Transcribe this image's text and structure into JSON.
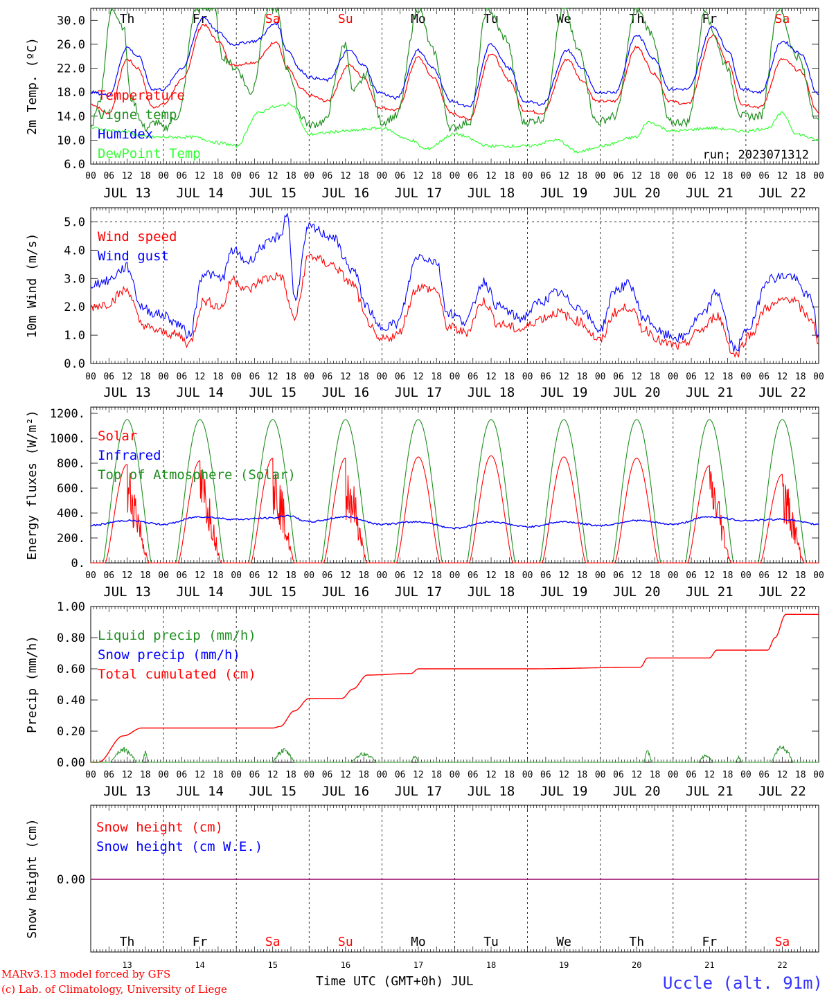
{
  "colors": {
    "temperature": "#ff0000",
    "vigne": "#1f8f1f",
    "humidex": "#0000ff",
    "dewpoint": "#33ff33",
    "wind": "#ff0000",
    "gust": "#0000ff",
    "solar": "#ff0000",
    "infrared": "#0000ff",
    "toa": "#1f8f1f",
    "liquid": "#1f8f1f",
    "snow_precip": "#0000ff",
    "cumulated": "#ff0000",
    "snow_height": "#ff0000",
    "snow_we": "#0000ff",
    "weekend": "#ff0000",
    "station": "#3333ff"
  },
  "days": [
    "JUL 13",
    "JUL 14",
    "JUL 15",
    "JUL 16",
    "JUL 17",
    "JUL 18",
    "JUL 19",
    "JUL 20",
    "JUL 21",
    "JUL 22"
  ],
  "weekdays": [
    {
      "label": "Th",
      "weekend": false
    },
    {
      "label": "Fr",
      "weekend": false
    },
    {
      "label": "Sa",
      "weekend": true
    },
    {
      "label": "Su",
      "weekend": true
    },
    {
      "label": "Mo",
      "weekend": false
    },
    {
      "label": "Tu",
      "weekend": false
    },
    {
      "label": "We",
      "weekend": false
    },
    {
      "label": "Th",
      "weekend": false
    },
    {
      "label": "Fr",
      "weekend": false
    },
    {
      "label": "Sa",
      "weekend": true
    }
  ],
  "day_numbers": [
    "13",
    "14",
    "15",
    "16",
    "17",
    "18",
    "19",
    "20",
    "21",
    "22"
  ],
  "hour_labels": [
    "00",
    "06",
    "12",
    "18"
  ],
  "hour_end": "00",
  "run_label": "run: 2023071312",
  "footer": {
    "credit_line1": "MARv3.13 model forced by GFS",
    "credit_line2": "(c) Lab. of Climatology, University of Liege",
    "time_axis": "Time UTC (GMT+0h) JUL",
    "station": "Uccle (alt. 91m)"
  },
  "chart_data": [
    {
      "id": "temperature",
      "type": "line",
      "ylabel": "2m Temp. (ºC)",
      "ylim": [
        6,
        32
      ],
      "yticks": [
        "6.0",
        "10.0",
        "14.0",
        "18.0",
        "22.0",
        "26.0",
        "30.0"
      ],
      "x_unit": "day offset from JUL 13 00 UTC",
      "legend": [
        "Temperature",
        "Vigne temp",
        "Humidex",
        "DewPoint Temp"
      ],
      "series": [
        {
          "name": "Temperature",
          "key": "temperature",
          "x": [
            0,
            0.25,
            0.5,
            0.65,
            0.85,
            1,
            1.25,
            1.55,
            1.75,
            1.95,
            2.25,
            2.55,
            2.7,
            2.9,
            3,
            3.25,
            3.55,
            3.75,
            3.95,
            4.2,
            4.5,
            4.7,
            4.95,
            5.2,
            5.5,
            5.75,
            5.95,
            6.2,
            6.55,
            6.75,
            6.95,
            7.2,
            7.5,
            7.75,
            7.95,
            8.2,
            8.55,
            8.75,
            8.95,
            9.2,
            9.5,
            9.75,
            10
          ],
          "y": [
            16,
            14.5,
            23.5,
            22,
            15.5,
            16,
            20,
            29.3,
            26.5,
            22.5,
            23,
            26.5,
            22,
            18.5,
            17.5,
            16.5,
            22.5,
            20.5,
            15.5,
            15,
            23.8,
            20.5,
            14.5,
            13.5,
            24.5,
            20,
            15,
            14.5,
            23.5,
            20,
            16.5,
            16.5,
            25.5,
            21,
            16.5,
            16,
            27.5,
            23,
            16,
            15.5,
            23.5,
            21.5,
            14.5
          ]
        },
        {
          "name": "Vigne temp",
          "key": "vigne",
          "x": [
            0,
            0.1,
            0.3,
            0.45,
            0.55,
            0.75,
            0.9,
            1,
            1.2,
            1.45,
            1.7,
            1.8,
            2,
            2.2,
            2.45,
            2.55,
            2.7,
            2.9,
            3,
            3.2,
            3.5,
            3.6,
            3.8,
            4,
            4.2,
            4.5,
            4.7,
            4.95,
            5.2,
            5.45,
            5.7,
            5.95,
            6.2,
            6.5,
            6.7,
            6.95,
            7.2,
            7.5,
            7.7,
            7.95,
            8.2,
            8.45,
            8.55,
            8.7,
            8.95,
            9.2,
            9.45,
            9.7,
            10
          ],
          "y": [
            12,
            16,
            32,
            29,
            17,
            12,
            13,
            12,
            14,
            32,
            32,
            24,
            22,
            18,
            32,
            32,
            22,
            14,
            12.5,
            13,
            26,
            18,
            21,
            13,
            14,
            32,
            25,
            12,
            13,
            32,
            27,
            13,
            13.5,
            32,
            25,
            13,
            14,
            32,
            28,
            13,
            13,
            32,
            28,
            23,
            14,
            14,
            32,
            24,
            13
          ]
        },
        {
          "name": "Humidex",
          "key": "humidex",
          "x": [
            0,
            0.25,
            0.5,
            0.65,
            0.85,
            1,
            1.25,
            1.55,
            1.75,
            1.95,
            2.25,
            2.55,
            2.7,
            2.9,
            3,
            3.25,
            3.55,
            3.75,
            3.95,
            4.2,
            4.5,
            4.7,
            4.95,
            5.2,
            5.5,
            5.75,
            5.95,
            6.2,
            6.55,
            6.75,
            6.95,
            7.2,
            7.5,
            7.75,
            7.95,
            8.2,
            8.55,
            8.75,
            8.95,
            9.2,
            9.5,
            9.75,
            10
          ],
          "y": [
            18,
            17.5,
            25.5,
            24,
            18.5,
            18.5,
            22,
            30.5,
            28,
            26,
            26.5,
            29.5,
            25,
            21.5,
            20.5,
            20,
            25,
            22.5,
            18,
            17,
            25,
            22,
            16.5,
            15.5,
            26,
            22,
            16.5,
            16,
            25,
            22,
            18,
            18,
            27.5,
            23.5,
            18.5,
            18.5,
            29,
            25,
            18.5,
            18,
            26.5,
            24.5,
            17.5
          ]
        },
        {
          "name": "DewPoint Temp",
          "key": "dewpoint",
          "x": [
            0,
            0.4,
            0.8,
            1,
            1.4,
            1.8,
            2,
            2.3,
            2.5,
            2.75,
            3,
            3.5,
            4,
            4.4,
            4.6,
            5,
            5.5,
            6,
            6.4,
            6.7,
            7,
            7.5,
            7.65,
            8,
            8.5,
            9,
            9.3,
            9.5,
            9.7,
            10
          ],
          "y": [
            12,
            11.5,
            10.5,
            10.5,
            10.5,
            9.5,
            9,
            14.5,
            15.5,
            16,
            11,
            11.5,
            12,
            10,
            8.5,
            11,
            9,
            9,
            10,
            8,
            9,
            10.5,
            13,
            11.5,
            12,
            11.5,
            12,
            14.5,
            11,
            10
          ]
        }
      ]
    },
    {
      "id": "wind",
      "type": "line",
      "ylabel": "10m Wind (m/s)",
      "ylim": [
        0,
        5.5
      ],
      "yticks": [
        "0.0",
        "1.0",
        "2.0",
        "3.0",
        "4.0",
        "5.0"
      ],
      "legend": [
        "Wind speed",
        "Wind gust"
      ],
      "series": [
        {
          "name": "Wind speed",
          "key": "wind",
          "x": [
            0,
            0.2,
            0.5,
            0.7,
            0.85,
            1,
            1.2,
            1.35,
            1.55,
            1.8,
            1.95,
            2.15,
            2.4,
            2.6,
            2.8,
            3,
            3.3,
            3.6,
            3.8,
            3.95,
            4.2,
            4.5,
            4.75,
            4.9,
            5.15,
            5.4,
            5.6,
            5.9,
            6.2,
            6.4,
            6.7,
            7,
            7.2,
            7.4,
            7.6,
            7.9,
            8.1,
            8.4,
            8.6,
            8.85,
            9.05,
            9.3,
            9.6,
            9.9,
            10
          ],
          "y": [
            2.0,
            2.1,
            2.6,
            1.4,
            1.2,
            1.1,
            1.0,
            0.7,
            2.2,
            2.0,
            3.0,
            2.6,
            3.0,
            3.1,
            1.6,
            3.8,
            3.5,
            2.8,
            1.5,
            0.8,
            1.0,
            2.7,
            2.6,
            1.3,
            1.1,
            2.2,
            1.4,
            1.2,
            1.6,
            1.8,
            1.5,
            0.8,
            1.8,
            2.0,
            1.2,
            0.7,
            0.6,
            1.2,
            1.7,
            0.3,
            1.0,
            2.0,
            2.3,
            1.6,
            0.6
          ]
        },
        {
          "name": "Wind gust",
          "key": "gust",
          "x": [
            0,
            0.2,
            0.5,
            0.7,
            0.85,
            1,
            1.2,
            1.35,
            1.55,
            1.8,
            1.95,
            2.15,
            2.4,
            2.6,
            2.7,
            2.8,
            3,
            3.3,
            3.6,
            3.8,
            3.95,
            4.2,
            4.5,
            4.75,
            4.9,
            5.15,
            5.4,
            5.6,
            5.9,
            6.2,
            6.4,
            6.7,
            7,
            7.2,
            7.4,
            7.6,
            7.9,
            8.1,
            8.4,
            8.6,
            8.85,
            9.05,
            9.3,
            9.6,
            9.9,
            10
          ],
          "y": [
            2.8,
            2.9,
            3.4,
            2.0,
            1.8,
            1.7,
            1.4,
            1.0,
            3.2,
            3.0,
            4.0,
            3.6,
            4.2,
            4.5,
            5.3,
            2.3,
            4.8,
            4.5,
            3.3,
            2.0,
            1.3,
            1.4,
            3.8,
            3.6,
            1.8,
            1.5,
            2.9,
            2.0,
            1.6,
            2.2,
            2.5,
            2.0,
            1.2,
            2.6,
            2.8,
            1.6,
            1.0,
            0.9,
            1.7,
            2.5,
            0.5,
            1.3,
            3.0,
            3.1,
            2.3,
            0.9
          ]
        }
      ]
    },
    {
      "id": "energy",
      "type": "line",
      "ylabel": "Energy fluxes (W/m²)",
      "ylim": [
        0,
        1250
      ],
      "yticks": [
        "0.",
        "200.",
        "400.",
        "600.",
        "800.",
        "1000.",
        "1200."
      ],
      "legend": [
        "Solar",
        "Infrared",
        "Top of Atmosphere (Solar)"
      ],
      "toa_peak": 1150,
      "solar_day_peaks": [
        790,
        820,
        840,
        840,
        850,
        860,
        850,
        840,
        780,
        710
      ],
      "infrared": {
        "x": [
          0,
          0.5,
          1,
          1.5,
          2,
          2.5,
          2.7,
          3,
          3.5,
          4,
          4.5,
          5,
          5.5,
          6,
          6.5,
          7,
          7.5,
          8,
          8.5,
          9,
          9.5,
          10
        ],
        "y": [
          300,
          340,
          310,
          370,
          350,
          360,
          380,
          330,
          370,
          310,
          330,
          280,
          330,
          290,
          330,
          300,
          340,
          310,
          370,
          340,
          350,
          310
        ]
      }
    },
    {
      "id": "precip",
      "type": "line",
      "ylabel": "Precip (mm/h)",
      "ylim": [
        0,
        1.0
      ],
      "yticks": [
        "0.00",
        "0.20",
        "0.40",
        "0.60",
        "0.80",
        "1.00"
      ],
      "legend": [
        "Liquid precip (mm/h)",
        "Snow precip (mm/h)",
        "Total cumulated (cm)"
      ],
      "series": [
        {
          "name": "Total cumulated (cm)",
          "key": "cumulated",
          "x": [
            0,
            0.1,
            0.45,
            0.7,
            2.5,
            2.6,
            2.8,
            3,
            3.45,
            3.6,
            3.8,
            4.4,
            4.5,
            5,
            6,
            7.55,
            7.65,
            8.5,
            8.6,
            9.3,
            9.4,
            9.55,
            10
          ],
          "y": [
            0,
            0,
            0.17,
            0.22,
            0.22,
            0.23,
            0.33,
            0.41,
            0.41,
            0.47,
            0.56,
            0.57,
            0.6,
            0.6,
            0.6,
            0.61,
            0.67,
            0.67,
            0.72,
            0.72,
            0.8,
            0.95,
            0.95
          ]
        },
        {
          "name": "Liquid precip (mm/h)",
          "key": "liquid",
          "bumps": [
            [
              0.45,
              0.35,
              0.1
            ],
            [
              0.75,
              0.06,
              0.08
            ],
            [
              2.65,
              0.3,
              0.09
            ],
            [
              3.75,
              0.35,
              0.065
            ],
            [
              4.45,
              0.1,
              0.045
            ],
            [
              7.65,
              0.1,
              0.08
            ],
            [
              8.45,
              0.2,
              0.05
            ],
            [
              8.9,
              0.08,
              0.04
            ],
            [
              9.5,
              0.3,
              0.12
            ]
          ]
        }
      ]
    },
    {
      "id": "snow",
      "type": "line",
      "ylabel": "Snow height (cm)",
      "yticks": [
        "0.00"
      ],
      "legend": [
        "Snow height (cm)",
        "Snow height (cm W.E.)"
      ],
      "series": [
        {
          "name": "Snow height (cm)",
          "key": "snow_height",
          "x": [
            0,
            10
          ],
          "y": [
            0,
            0
          ]
        },
        {
          "name": "Snow height (cm W.E.)",
          "key": "snow_we",
          "x": [
            0,
            10
          ],
          "y": [
            0,
            0
          ]
        }
      ]
    }
  ]
}
